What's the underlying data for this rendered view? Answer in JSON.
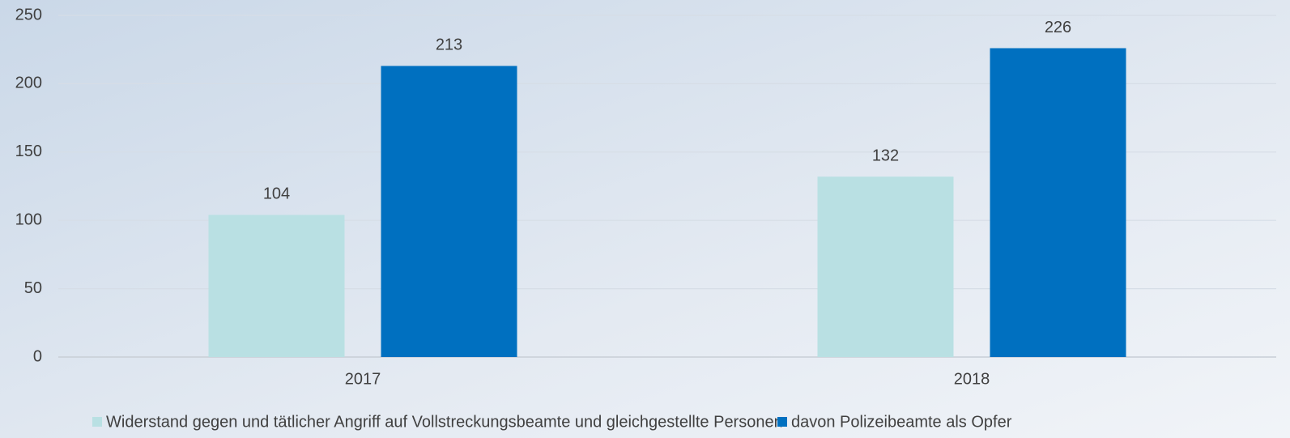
{
  "chart_data": {
    "type": "bar",
    "categories": [
      "2017",
      "2018"
    ],
    "series": [
      {
        "name": "Widerstand gegen und tätlicher Angriff auf Vollstreckungsbeamte und gleichgestellte Personen",
        "color": "#b9e0e3",
        "values": [
          104,
          132
        ]
      },
      {
        "name": "davon Polizeibeamte als Opfer",
        "color": "#0070c0",
        "values": [
          213,
          226
        ]
      }
    ],
    "ylim": [
      0,
      250
    ],
    "yticks": [
      0,
      50,
      100,
      150,
      200,
      250
    ],
    "grid": true,
    "legend": "bottom"
  }
}
